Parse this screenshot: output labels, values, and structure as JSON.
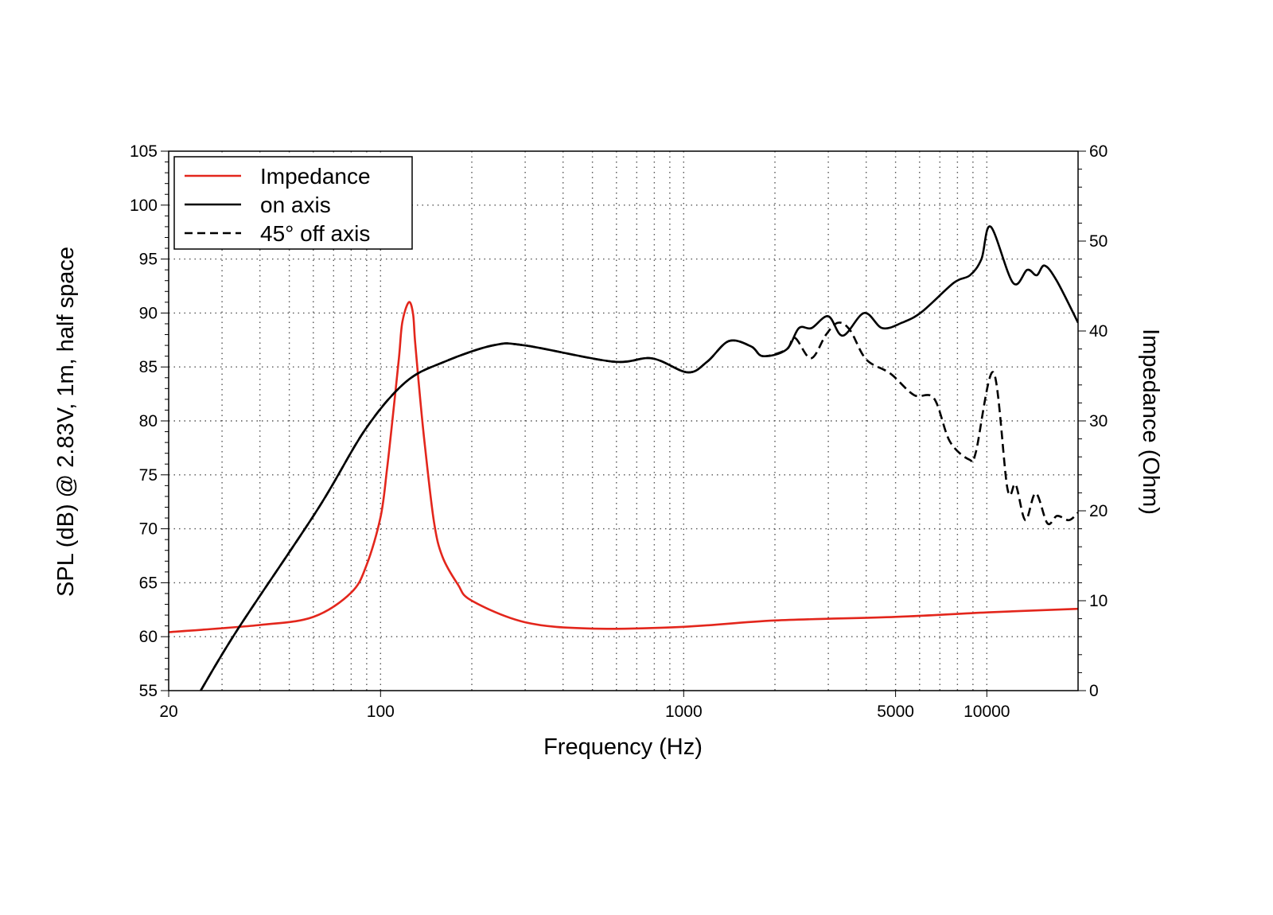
{
  "chart_data": {
    "type": "line",
    "xlabel": "Frequency (Hz)",
    "ylabel": "SPL (dB) @ 2.83V, 1m, half space",
    "y2label": "Impedance (Ohm)",
    "xscale": "log",
    "xlim": [
      20,
      20000
    ],
    "ylim": [
      55,
      105
    ],
    "y2lim": [
      0,
      60
    ],
    "grid": true,
    "legend_position": "top-left",
    "x_tick_labels": [
      "20",
      "100",
      "1000",
      "5000",
      "10000"
    ],
    "x_ticks": [
      20,
      100,
      1000,
      5000,
      10000
    ],
    "y_ticks": [
      55,
      60,
      65,
      70,
      75,
      80,
      85,
      90,
      95,
      100,
      105
    ],
    "y2_ticks": [
      0,
      10,
      20,
      30,
      40,
      50,
      60
    ],
    "series": [
      {
        "name": "Impedance",
        "axis": "right",
        "color": "#e3261c",
        "style": "solid",
        "x": [
          20,
          40,
          60,
          80,
          90,
          100,
          105,
          110,
          115,
          118,
          124,
          128,
          130,
          135,
          140,
          150,
          160,
          180,
          200,
          300,
          500,
          1000,
          2000,
          5000,
          10000,
          20000
        ],
        "y": [
          6.5,
          7.3,
          8.2,
          10.9,
          14,
          19.3,
          24.6,
          30.8,
          37,
          41,
          43.2,
          41.9,
          38.8,
          32.6,
          27.3,
          18.8,
          14.9,
          11.8,
          10,
          7.6,
          6.9,
          7.1,
          7.8,
          8.2,
          8.7,
          9.1
        ]
      },
      {
        "name": "on axis",
        "axis": "left",
        "color": "#000000",
        "style": "solid",
        "x": [
          25.5,
          34,
          62,
          89,
          121,
          163,
          235,
          299,
          581,
          785,
          1030,
          1197,
          1410,
          1670,
          1826,
          2180,
          2400,
          2640,
          3000,
          3350,
          3940,
          4520,
          5250,
          6100,
          7780,
          8800,
          9600,
          10300,
          12200,
          13600,
          14600,
          15500,
          17000,
          20000
        ],
        "y": [
          55,
          60.8,
          71.8,
          79.2,
          83.6,
          85.5,
          87,
          87,
          85.5,
          85.8,
          84.5,
          85.5,
          87.4,
          86.9,
          86,
          86.6,
          88.6,
          88.6,
          89.7,
          87.9,
          90,
          88.6,
          89.1,
          90.1,
          92.8,
          93.5,
          95,
          98,
          92.8,
          94,
          93.5,
          94.4,
          93,
          89.1
        ]
      },
      {
        "name": "45° off axis",
        "axis": "left",
        "color": "#000000",
        "style": "dashed",
        "x": [
          25.5,
          34,
          62,
          89,
          121,
          163,
          235,
          299,
          581,
          785,
          1030,
          1197,
          1410,
          1670,
          1826,
          2180,
          2327,
          2630,
          2950,
          3230,
          3540,
          4000,
          4800,
          5750,
          6690,
          7550,
          8770,
          9200,
          10520,
          11700,
          12450,
          13400,
          14500,
          15850,
          17060,
          18660,
          20000
        ],
        "y": [
          55,
          60.8,
          71.8,
          79.2,
          83.6,
          85.5,
          87,
          87,
          85.5,
          85.8,
          84.5,
          85.5,
          87.4,
          86.9,
          86,
          86.6,
          87.7,
          85.8,
          88,
          89.1,
          88.4,
          85.7,
          84.4,
          82.4,
          82.1,
          78.1,
          76.4,
          77.1,
          84.5,
          73.7,
          74.1,
          70.8,
          73.3,
          70.5,
          71.2,
          70.8,
          71.5
        ]
      }
    ]
  }
}
